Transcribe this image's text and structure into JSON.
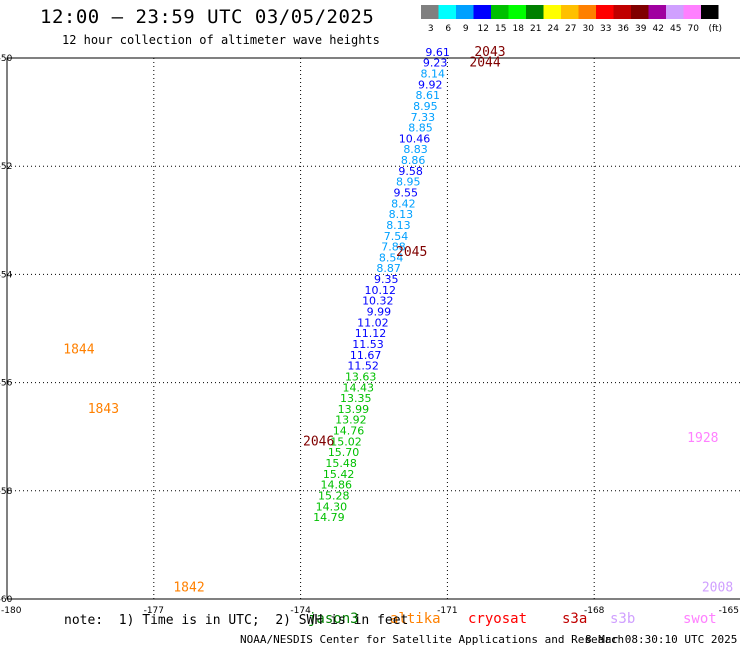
{
  "header": {
    "title": "12:00 – 23:59 UTC 03/05/2025",
    "subtitle": "12 hour collection of altimeter wave heights"
  },
  "color_scale": {
    "unit": "(ft)",
    "bins": [
      {
        "label": "3",
        "color": "#808080"
      },
      {
        "label": "6",
        "color": "#00ffff"
      },
      {
        "label": "9",
        "color": "#00a0ff"
      },
      {
        "label": "12",
        "color": "#0000ff"
      },
      {
        "label": "15",
        "color": "#00c000"
      },
      {
        "label": "18",
        "color": "#00ff00"
      },
      {
        "label": "21",
        "color": "#008000"
      },
      {
        "label": "24",
        "color": "#ffff00"
      },
      {
        "label": "27",
        "color": "#ffc000"
      },
      {
        "label": "30",
        "color": "#ff8000"
      },
      {
        "label": "33",
        "color": "#ff0000"
      },
      {
        "label": "36",
        "color": "#c00000"
      },
      {
        "label": "39",
        "color": "#800000"
      },
      {
        "label": "42",
        "color": "#a000a0"
      },
      {
        "label": "45",
        "color": "#d0a0ff"
      },
      {
        "label": "70",
        "color": "#ff80ff"
      },
      {
        "label": "",
        "color": "#000000"
      }
    ]
  },
  "footer": {
    "note": "note:  1) Time is in UTC;  2) SWH is in feet",
    "credit": "NOAA/NESDIS Center for Satellite Applications and Research",
    "timestamp": "8 Mar 08:30:10 UTC 2025",
    "satellites": [
      {
        "name": "jason3",
        "color": "#008000"
      },
      {
        "name": "altika",
        "color": "#ff8000"
      },
      {
        "name": "cryosat",
        "color": "#ff0000"
      },
      {
        "name": "s3a",
        "color": "#c00000"
      },
      {
        "name": "s3b",
        "color": "#d0a0ff"
      },
      {
        "name": "swot",
        "color": "#ff80ff"
      }
    ]
  },
  "chart_data": {
    "type": "scatter",
    "title": "12:00 – 23:59 UTC 03/05/2025",
    "subtitle": "12 hour collection of altimeter wave heights",
    "xlabel": "",
    "ylabel": "",
    "xlim": [
      -180,
      -165
    ],
    "ylim": [
      -60,
      -50
    ],
    "grid": true,
    "x_ticks": [
      "-180",
      "-177",
      "-174",
      "-171",
      "-168",
      "-165"
    ],
    "y_ticks": [
      "-50",
      "-52",
      "-54",
      "-56",
      "-58",
      "-60"
    ],
    "time_labels": [
      {
        "text": "2043",
        "x": -170.45,
        "y": -49.96,
        "color": "#800000"
      },
      {
        "text": "2044",
        "x": -170.55,
        "y": -50.16,
        "color": "#800000"
      },
      {
        "text": "2045",
        "x": -172.05,
        "y": -53.66,
        "color": "#800000"
      },
      {
        "text": "2046",
        "x": -173.95,
        "y": -57.16,
        "color": "#800000"
      },
      {
        "text": "1844",
        "x": -178.85,
        "y": -55.46,
        "color": "#ff8000"
      },
      {
        "text": "1843",
        "x": -178.35,
        "y": -56.56,
        "color": "#ff8000"
      },
      {
        "text": "1842",
        "x": -176.6,
        "y": -59.86,
        "color": "#ff8000"
      },
      {
        "text": "1928",
        "x": -166.1,
        "y": -57.1,
        "color": "#ff80ff"
      },
      {
        "text": "2008",
        "x": -165.8,
        "y": -59.86,
        "color": "#d0a0ff"
      }
    ],
    "series": [
      {
        "name": "track_2043",
        "color_note": "colored by wave height bin",
        "points": [
          {
            "x": -170.95,
            "y": -49.96,
            "v": "9.61",
            "color": "#0000ff"
          },
          {
            "x": -171.0,
            "y": -50.16,
            "v": "9.23",
            "color": "#0000ff"
          },
          {
            "x": -171.05,
            "y": -50.36,
            "v": "8.14",
            "color": "#00a0ff"
          },
          {
            "x": -171.1,
            "y": -50.56,
            "v": "9.92",
            "color": "#0000ff"
          },
          {
            "x": -171.15,
            "y": -50.76,
            "v": "8.61",
            "color": "#00a0ff"
          },
          {
            "x": -171.2,
            "y": -50.96,
            "v": "8.95",
            "color": "#00a0ff"
          },
          {
            "x": -171.25,
            "y": -51.16,
            "v": "7.33",
            "color": "#00a0ff"
          },
          {
            "x": -171.3,
            "y": -51.36,
            "v": "8.85",
            "color": "#00a0ff"
          },
          {
            "x": -171.35,
            "y": -51.56,
            "v": "10.46",
            "color": "#0000ff"
          },
          {
            "x": -171.4,
            "y": -51.76,
            "v": "8.83",
            "color": "#00a0ff"
          },
          {
            "x": -171.45,
            "y": -51.96,
            "v": "8.86",
            "color": "#00a0ff"
          },
          {
            "x": -171.5,
            "y": -52.16,
            "v": "9.58",
            "color": "#0000ff"
          },
          {
            "x": -171.55,
            "y": -52.36,
            "v": "8.95",
            "color": "#00a0ff"
          },
          {
            "x": -171.6,
            "y": -52.56,
            "v": "9.55",
            "color": "#0000ff"
          },
          {
            "x": -171.65,
            "y": -52.76,
            "v": "8.42",
            "color": "#00a0ff"
          },
          {
            "x": -171.7,
            "y": -52.96,
            "v": "8.13",
            "color": "#00a0ff"
          },
          {
            "x": -171.75,
            "y": -53.16,
            "v": "8.13",
            "color": "#00a0ff"
          },
          {
            "x": -171.8,
            "y": -53.36,
            "v": "7.54",
            "color": "#00a0ff"
          },
          {
            "x": -171.85,
            "y": -53.56,
            "v": "7.88",
            "color": "#00a0ff"
          },
          {
            "x": -171.9,
            "y": -53.76,
            "v": "8.54",
            "color": "#00a0ff"
          },
          {
            "x": -171.95,
            "y": -53.96,
            "v": "8.87",
            "color": "#00a0ff"
          },
          {
            "x": -172.0,
            "y": -54.16,
            "v": "9.35",
            "color": "#0000ff"
          },
          {
            "x": -172.05,
            "y": -54.36,
            "v": "10.12",
            "color": "#0000ff"
          },
          {
            "x": -172.1,
            "y": -54.56,
            "v": "10.32",
            "color": "#0000ff"
          },
          {
            "x": -172.15,
            "y": -54.76,
            "v": "9.99",
            "color": "#0000ff"
          },
          {
            "x": -172.2,
            "y": -54.96,
            "v": "11.02",
            "color": "#0000ff"
          },
          {
            "x": -172.25,
            "y": -55.16,
            "v": "11.12",
            "color": "#0000ff"
          },
          {
            "x": -172.3,
            "y": -55.36,
            "v": "11.53",
            "color": "#0000ff"
          },
          {
            "x": -172.35,
            "y": -55.56,
            "v": "11.67",
            "color": "#0000ff"
          },
          {
            "x": -172.4,
            "y": -55.76,
            "v": "11.52",
            "color": "#0000ff"
          },
          {
            "x": -172.45,
            "y": -55.96,
            "v": "13.63",
            "color": "#00c000"
          },
          {
            "x": -172.5,
            "y": -56.16,
            "v": "14.43",
            "color": "#00c000"
          },
          {
            "x": -172.55,
            "y": -56.36,
            "v": "13.35",
            "color": "#00c000"
          },
          {
            "x": -172.6,
            "y": -56.56,
            "v": "13.99",
            "color": "#00c000"
          },
          {
            "x": -172.65,
            "y": -56.76,
            "v": "13.92",
            "color": "#00c000"
          },
          {
            "x": -172.7,
            "y": -56.96,
            "v": "14.76",
            "color": "#00c000"
          },
          {
            "x": -172.75,
            "y": -57.16,
            "v": "15.02",
            "color": "#00c000"
          },
          {
            "x": -172.8,
            "y": -57.36,
            "v": "15.70",
            "color": "#00c000"
          },
          {
            "x": -172.85,
            "y": -57.56,
            "v": "15.48",
            "color": "#00c000"
          },
          {
            "x": -172.9,
            "y": -57.76,
            "v": "15.42",
            "color": "#00c000"
          },
          {
            "x": -172.95,
            "y": -57.96,
            "v": "14.86",
            "color": "#00c000"
          },
          {
            "x": -173.0,
            "y": -58.16,
            "v": "15.28",
            "color": "#00c000"
          },
          {
            "x": -173.05,
            "y": -58.36,
            "v": "14.30",
            "color": "#00c000"
          },
          {
            "x": -173.1,
            "y": -58.56,
            "v": "14.79",
            "color": "#00c000"
          }
        ]
      }
    ]
  }
}
